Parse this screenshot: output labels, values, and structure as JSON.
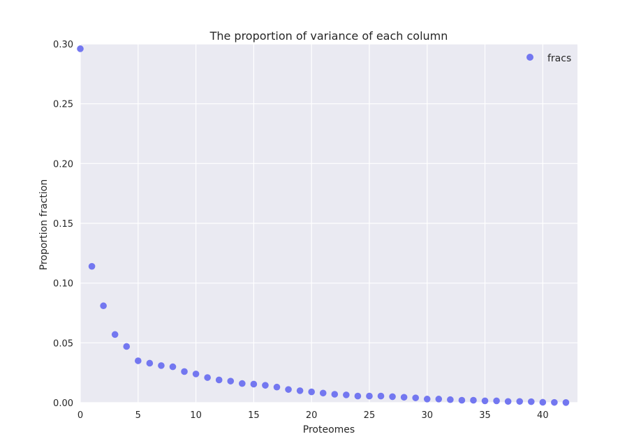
{
  "chart_data": {
    "type": "scatter",
    "title": "The proportion of variance of each column",
    "xlabel": "Proteomes",
    "ylabel": "Proportion fraction",
    "xlim": [
      0,
      43
    ],
    "ylim": [
      0,
      0.3
    ],
    "xticks": [
      0,
      5,
      10,
      15,
      20,
      25,
      30,
      35,
      40
    ],
    "xtick_labels": [
      "0",
      "5",
      "10",
      "15",
      "20",
      "25",
      "30",
      "35",
      "40"
    ],
    "yticks": [
      0,
      0.05,
      0.1,
      0.15,
      0.2,
      0.25,
      0.3
    ],
    "ytick_labels": [
      "0.00",
      "0.05",
      "0.10",
      "0.15",
      "0.20",
      "0.25",
      "0.30"
    ],
    "grid": true,
    "legend_position": "top-right",
    "series": [
      {
        "name": "fracs",
        "color": "#7377f0",
        "x": [
          0,
          1,
          2,
          3,
          4,
          5,
          6,
          7,
          8,
          9,
          10,
          11,
          12,
          13,
          14,
          15,
          16,
          17,
          18,
          19,
          20,
          21,
          22,
          23,
          24,
          25,
          26,
          27,
          28,
          29,
          30,
          31,
          32,
          33,
          34,
          35,
          36,
          37,
          38,
          39,
          40,
          41,
          42
        ],
        "y": [
          0.296,
          0.114,
          0.081,
          0.057,
          0.047,
          0.035,
          0.033,
          0.031,
          0.03,
          0.026,
          0.024,
          0.021,
          0.019,
          0.018,
          0.016,
          0.0155,
          0.0145,
          0.013,
          0.011,
          0.01,
          0.009,
          0.008,
          0.007,
          0.0065,
          0.0055,
          0.0055,
          0.0055,
          0.005,
          0.0045,
          0.004,
          0.003,
          0.003,
          0.0025,
          0.002,
          0.002,
          0.0015,
          0.0015,
          0.001,
          0.001,
          0.0008,
          0.0003,
          0.0002,
          0.0001
        ]
      }
    ]
  },
  "colors": {
    "plot_background": "#eaeaf2",
    "grid": "#ffffff",
    "text": "#262626"
  }
}
